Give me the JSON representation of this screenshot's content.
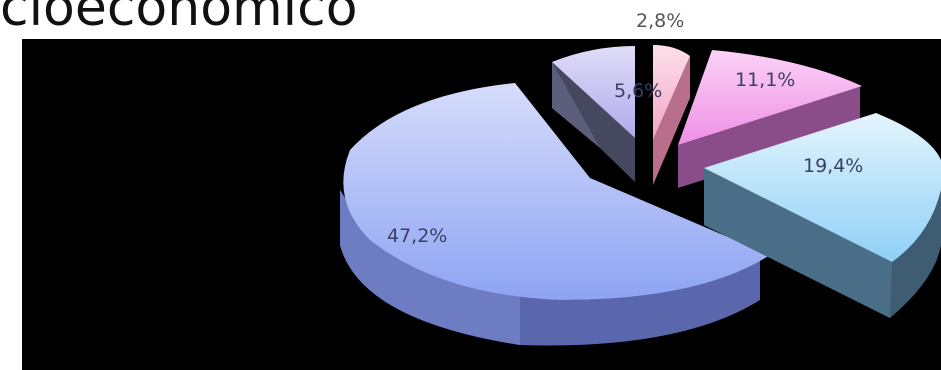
{
  "slide": {
    "heading": "cioeconómico"
  },
  "chart_data": {
    "type": "pie",
    "style": "3d-exploded",
    "slices": [
      {
        "value": 47.2,
        "label": "47,2%",
        "color": "#a9b8f7"
      },
      {
        "value": 5.6,
        "label": "5,6%",
        "color": "#c7c2f2"
      },
      {
        "value": 2.8,
        "label": "2,8%",
        "color": "#f6bcd2"
      },
      {
        "value": 11.1,
        "label": "11,1%",
        "color": "#f3a9ee"
      },
      {
        "value": 19.4,
        "label": "19,4%",
        "color": "#bfe5fb"
      }
    ]
  }
}
